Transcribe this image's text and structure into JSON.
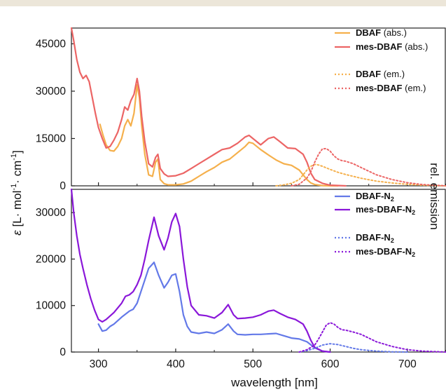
{
  "chart_data": [
    {
      "type": "line",
      "panel": "top",
      "xlabel": "wavelength [nm]",
      "ylabel_parts": [
        "ε",
        "[L· mol",
        "-1",
        "· cm",
        "-1",
        "]"
      ],
      "y2label": "rel. emission",
      "xlim": [
        265,
        750
      ],
      "ylim": [
        0,
        50000
      ],
      "yticks": [
        "0",
        "15000",
        "30000",
        "45000"
      ],
      "ytick_values": [
        0,
        15000,
        30000,
        45000
      ],
      "xtick_values": [
        300,
        400,
        500,
        600,
        700
      ],
      "colors": {
        "dbaf": "#f5b04c",
        "mes": "#ec6565"
      },
      "legend": {
        "placement": "top-right",
        "items": [
          {
            "key": "dbaf_abs",
            "bold": "DBAF",
            "rest": " (abs.)",
            "style": "solid",
            "color": "#f5b04c"
          },
          {
            "key": "mes_abs",
            "bold": "mes-DBAF",
            "rest": " (abs.)",
            "style": "solid",
            "color": "#ec6565"
          },
          {
            "key": "dbaf_em",
            "bold": "DBAF",
            "rest": " (em.)",
            "style": "dotted",
            "color": "#f5b04c"
          },
          {
            "key": "mes_em",
            "bold": "mes-DBAF",
            "rest": " (em.)",
            "style": "dotted",
            "color": "#ec6565"
          }
        ]
      },
      "series": [
        {
          "name": "DBAF (abs.)",
          "color": "#f5b04c",
          "dash": false,
          "x": [
            302,
            306,
            310,
            315,
            320,
            325,
            330,
            334,
            338,
            342,
            346,
            350,
            353,
            356,
            360,
            365,
            370,
            374,
            377,
            380,
            385,
            390,
            400,
            410,
            420,
            430,
            440,
            450,
            460,
            470,
            480,
            490,
            495,
            500,
            510,
            520,
            525,
            530,
            540,
            550,
            560,
            565,
            570,
            575,
            580,
            590,
            600,
            610
          ],
          "y": [
            19500,
            16000,
            13000,
            11200,
            11000,
            12500,
            15000,
            19000,
            21000,
            19000,
            23000,
            32000,
            28000,
            19000,
            10000,
            3500,
            3000,
            7500,
            8500,
            2000,
            700,
            300,
            300,
            600,
            1500,
            3000,
            4500,
            5800,
            7500,
            8500,
            10500,
            12500,
            13800,
            13500,
            11500,
            9800,
            9000,
            8200,
            7000,
            6500,
            5000,
            3500,
            2000,
            900,
            400,
            100,
            0,
            0
          ]
        },
        {
          "name": "mes-DBAF (abs.)",
          "color": "#ec6565",
          "dash": false,
          "x": [
            265,
            268,
            272,
            276,
            280,
            284,
            288,
            292,
            296,
            300,
            305,
            310,
            315,
            320,
            325,
            330,
            334,
            338,
            342,
            346,
            350,
            353,
            356,
            360,
            365,
            370,
            374,
            377,
            380,
            385,
            390,
            400,
            410,
            420,
            430,
            440,
            450,
            460,
            470,
            480,
            490,
            495,
            500,
            510,
            520,
            527,
            535,
            545,
            555,
            565,
            570,
            575,
            580,
            590,
            600,
            620
          ],
          "y": [
            50000,
            46000,
            40000,
            36000,
            34000,
            35000,
            33000,
            28000,
            23000,
            18500,
            15000,
            12000,
            12500,
            14500,
            17000,
            21000,
            25000,
            24000,
            27000,
            29000,
            34000,
            30000,
            22000,
            14000,
            7000,
            6000,
            9000,
            10000,
            5500,
            3800,
            3000,
            3200,
            4000,
            5500,
            7000,
            8500,
            10000,
            11500,
            12000,
            13500,
            15500,
            16000,
            15000,
            13000,
            15000,
            15500,
            14000,
            12000,
            11800,
            10000,
            7500,
            4000,
            2000,
            800,
            200,
            0
          ]
        },
        {
          "name": "DBAF (em.)",
          "color": "#f5b04c",
          "dash": true,
          "x": [
            530,
            540,
            550,
            560,
            565,
            570,
            575,
            580,
            585,
            590,
            600,
            610,
            620,
            640,
            660,
            680,
            700,
            720,
            750
          ],
          "y": [
            0,
            300,
            800,
            2000,
            3500,
            5000,
            6200,
            6800,
            6600,
            6200,
            5200,
            4300,
            3600,
            2400,
            1500,
            900,
            500,
            200,
            0
          ]
        },
        {
          "name": "mes-DBAF (em.)",
          "color": "#ec6565",
          "dash": true,
          "x": [
            550,
            560,
            570,
            575,
            580,
            585,
            590,
            595,
            600,
            605,
            610,
            615,
            620,
            630,
            640,
            660,
            680,
            700,
            720,
            750
          ],
          "y": [
            0,
            500,
            2500,
            4500,
            7500,
            10000,
            11700,
            11800,
            11000,
            9500,
            8500,
            8000,
            7800,
            7000,
            5800,
            3500,
            2000,
            1000,
            400,
            0
          ]
        }
      ]
    },
    {
      "type": "line",
      "panel": "bottom",
      "xlabel": "wavelength [nm]",
      "xlim": [
        265,
        750
      ],
      "ylim": [
        0,
        35000
      ],
      "xticks": [
        "300",
        "400",
        "500",
        "600",
        "700"
      ],
      "xtick_values": [
        300,
        400,
        500,
        600,
        700
      ],
      "yticks": [
        "0",
        "10000",
        "20000",
        "30000"
      ],
      "ytick_values": [
        0,
        10000,
        20000,
        30000
      ],
      "colors": {
        "dbaf_n2": "#6379e8",
        "mes_n2": "#8a17d9"
      },
      "legend": {
        "placement": "top-right",
        "items": [
          {
            "key": "dbaf_n2_abs",
            "bold": "DBAF-N",
            "sub": "2",
            "style": "solid",
            "color": "#6379e8"
          },
          {
            "key": "mes_n2_abs",
            "bold": "mes-DBAF-N",
            "sub": "2",
            "style": "solid",
            "color": "#8a17d9"
          },
          {
            "key": "dbaf_n2_em",
            "bold": "DBAF-N",
            "sub": "2",
            "style": "dotted",
            "color": "#6379e8"
          },
          {
            "key": "mes_n2_em",
            "bold": "mes-DBAF-N",
            "sub": "2",
            "style": "dotted",
            "color": "#8a17d9"
          }
        ]
      },
      "series": [
        {
          "name": "DBAF-N2 (abs.)",
          "color": "#6379e8",
          "dash": false,
          "x": [
            300,
            305,
            310,
            315,
            320,
            330,
            340,
            345,
            350,
            355,
            360,
            365,
            372,
            378,
            385,
            390,
            395,
            400,
            405,
            410,
            415,
            420,
            430,
            440,
            450,
            460,
            468,
            475,
            480,
            490,
            500,
            510,
            520,
            530,
            540,
            550,
            560,
            570,
            580,
            590,
            600
          ],
          "y": [
            6000,
            4500,
            4700,
            5500,
            6000,
            7500,
            8800,
            9200,
            10500,
            13000,
            15500,
            18000,
            19300,
            16500,
            13800,
            15000,
            16500,
            16800,
            13000,
            8000,
            5500,
            4300,
            4000,
            4300,
            4000,
            4800,
            6000,
            4500,
            3800,
            3700,
            3800,
            3800,
            3900,
            4000,
            3500,
            3000,
            2800,
            2200,
            900,
            200,
            0
          ]
        },
        {
          "name": "mes-DBAF-N2 (abs.)",
          "color": "#8a17d9",
          "dash": false,
          "x": [
            265,
            268,
            272,
            276,
            280,
            285,
            290,
            295,
            300,
            305,
            310,
            320,
            330,
            335,
            340,
            345,
            350,
            355,
            360,
            365,
            372,
            378,
            385,
            390,
            395,
            400,
            405,
            410,
            415,
            420,
            430,
            440,
            450,
            460,
            468,
            475,
            480,
            490,
            500,
            510,
            520,
            527,
            535,
            545,
            555,
            565,
            570,
            575,
            580,
            590,
            600
          ],
          "y": [
            35000,
            30000,
            25000,
            21000,
            18000,
            14500,
            11500,
            9000,
            7000,
            6500,
            7000,
            8500,
            10500,
            12000,
            12300,
            13000,
            14500,
            16500,
            20000,
            24000,
            29000,
            25000,
            22000,
            24500,
            28000,
            29800,
            27000,
            20000,
            14000,
            10000,
            8000,
            7800,
            7300,
            8500,
            10200,
            8000,
            7200,
            7300,
            7500,
            8000,
            8800,
            9000,
            8300,
            7500,
            7000,
            6000,
            4500,
            2500,
            1000,
            200,
            0
          ]
        },
        {
          "name": "DBAF-N2 (em.)",
          "color": "#6379e8",
          "dash": true,
          "x": [
            560,
            570,
            580,
            590,
            600,
            610,
            620,
            630,
            640,
            660,
            680,
            700
          ],
          "y": [
            0,
            300,
            800,
            1500,
            1800,
            1600,
            1200,
            800,
            500,
            200,
            50,
            0
          ]
        },
        {
          "name": "mes-DBAF-N2 (em.)",
          "color": "#8a17d9",
          "dash": true,
          "x": [
            560,
            570,
            580,
            585,
            590,
            595,
            600,
            605,
            610,
            615,
            620,
            630,
            640,
            650,
            660,
            680,
            700,
            720,
            750
          ],
          "y": [
            0,
            500,
            1500,
            2800,
            4300,
            5800,
            6300,
            6000,
            5300,
            4800,
            4700,
            4300,
            3800,
            3000,
            2200,
            1200,
            500,
            200,
            0
          ]
        }
      ]
    }
  ]
}
